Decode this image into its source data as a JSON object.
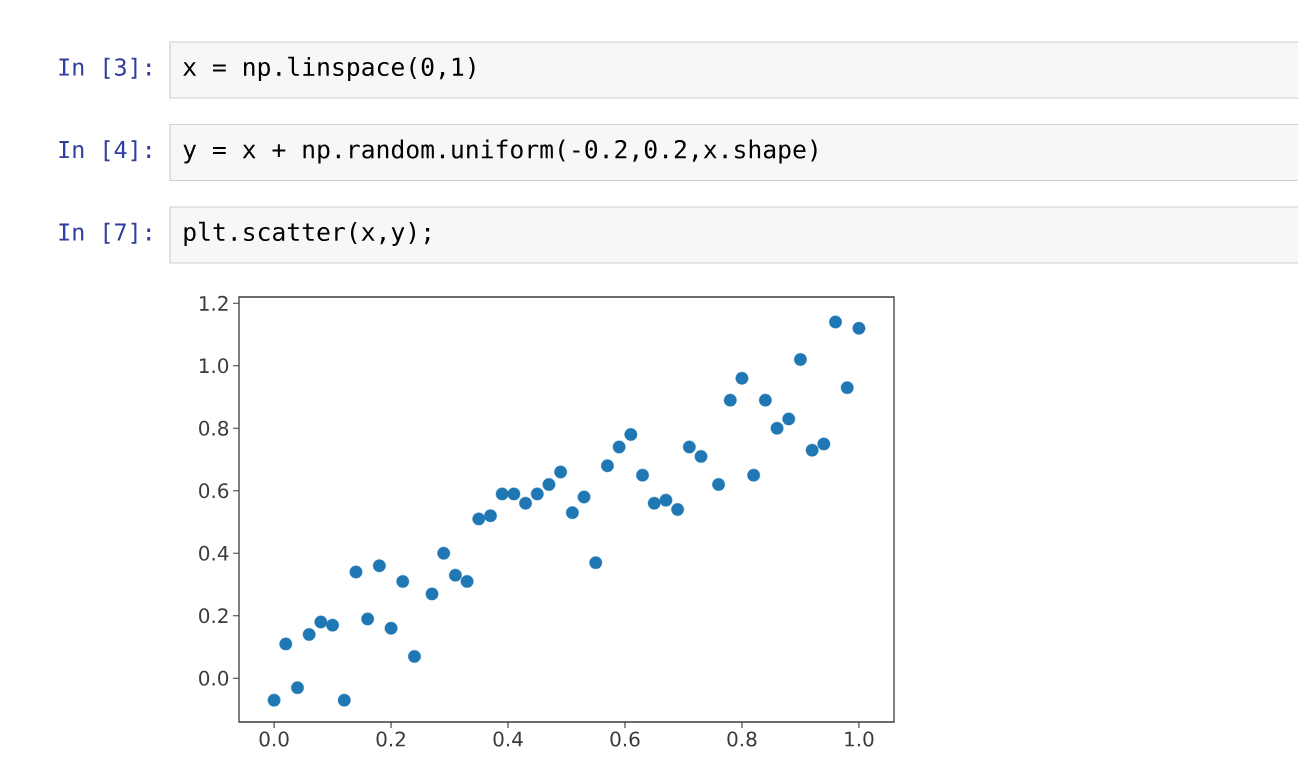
{
  "chart_data": {
    "type": "scatter",
    "annotations": [
      "In [3]:",
      "x = np.linspace(0,1)",
      "In [4]:",
      "y = x + np.random.uniform(-0.2,0.2,x.shape)",
      "In [7]:",
      "plt.scatter(x,y);"
    ],
    "x": [
      0,
      0.02,
      0.04,
      0.06,
      0.08,
      0.1,
      0.12,
      0.14,
      0.16,
      0.18,
      0.2,
      0.22,
      0.24,
      0.27,
      0.29,
      0.31,
      0.33,
      0.35,
      0.37,
      0.39,
      0.41,
      0.43,
      0.45,
      0.47,
      0.49,
      0.51,
      0.53,
      0.55,
      0.57,
      0.59,
      0.61,
      0.63,
      0.65,
      0.67,
      0.69,
      0.71,
      0.73,
      0.76,
      0.78,
      0.8,
      0.82,
      0.84,
      0.86,
      0.88,
      0.9,
      0.92,
      0.94,
      0.96,
      0.98,
      1.0
    ],
    "values": [
      -0.07,
      0.11,
      -0.03,
      0.14,
      0.18,
      0.17,
      -0.07,
      0.34,
      0.19,
      0.36,
      0.16,
      0.31,
      0.07,
      0.27,
      0.4,
      0.33,
      0.31,
      0.51,
      0.52,
      0.59,
      0.59,
      0.56,
      0.59,
      0.62,
      0.66,
      0.53,
      0.58,
      0.37,
      0.68,
      0.74,
      0.78,
      0.65,
      0.56,
      0.57,
      0.54,
      0.74,
      0.71,
      0.62,
      0.89,
      0.96,
      0.65,
      0.89,
      0.8,
      0.83,
      1.02,
      0.73,
      0.75,
      1.14,
      0.93,
      1.12
    ],
    "color": "#1f77b4",
    "marker": "circle",
    "xlim": [
      -0.06,
      1.06
    ],
    "ylim": [
      -0.14,
      1.22
    ],
    "xticks": [
      {
        "value": 0,
        "label": "0.0"
      },
      0.2,
      0.4,
      0.6,
      0.8,
      {
        "value": 1,
        "label": "1.0"
      }
    ],
    "yticks": [
      {
        "value": 0,
        "label": "0.0"
      },
      0.2,
      0.4,
      0.6,
      0.8,
      {
        "value": 1,
        "label": "1.0"
      },
      1.2
    ]
  }
}
